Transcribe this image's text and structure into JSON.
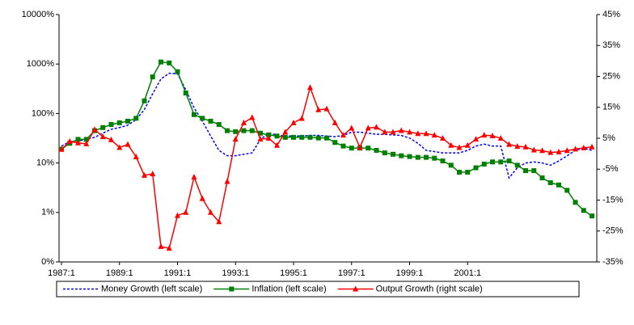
{
  "chart_data": {
    "type": "line",
    "categories": [
      "1987:1",
      null,
      null,
      null,
      null,
      null,
      null,
      "1989:1",
      null,
      null,
      null,
      null,
      null,
      null,
      "1991:1",
      null,
      null,
      null,
      null,
      null,
      null,
      "1993:1",
      null,
      null,
      null,
      null,
      null,
      null,
      "1995:1",
      null,
      null,
      null,
      null,
      null,
      null,
      "1997:1",
      null,
      null,
      null,
      null,
      null,
      null,
      "1999:1",
      null,
      null,
      null,
      null,
      null,
      null,
      "2001:1",
      null,
      null,
      null,
      null,
      null,
      null,
      null,
      null,
      null,
      null,
      null,
      null,
      null,
      null,
      null
    ],
    "log_scale_y": true,
    "ylim": [
      0.1,
      10000
    ],
    "yticks": [
      {
        "value": 0.1,
        "label": "0%"
      },
      {
        "value": 1,
        "label": "1%"
      },
      {
        "value": 10,
        "label": "10%"
      },
      {
        "value": 100,
        "label": "100%"
      },
      {
        "value": 1000,
        "label": "1000%"
      },
      {
        "value": 10000,
        "label": "10000%"
      }
    ],
    "y2lim": [
      -35,
      45
    ],
    "y2ticks": [
      {
        "value": -35,
        "label": "-35%"
      },
      {
        "value": -25,
        "label": "-25%"
      },
      {
        "value": -15,
        "label": "-15%"
      },
      {
        "value": -5,
        "label": "-5%"
      },
      {
        "value": 5,
        "label": "5%"
      },
      {
        "value": 15,
        "label": "15%"
      },
      {
        "value": 25,
        "label": "25%"
      },
      {
        "value": 35,
        "label": "35%"
      },
      {
        "value": 45,
        "label": "45%"
      }
    ],
    "legend": "bottom",
    "series": [
      {
        "name": "Money Growth (left scale)",
        "color": "#0000ff",
        "style": "dashed",
        "values": [
          22,
          27,
          28,
          30,
          33,
          40,
          48,
          52,
          58,
          75,
          120,
          250,
          500,
          650,
          640,
          300,
          130,
          70,
          35,
          18,
          14,
          14,
          15,
          16,
          30,
          40,
          37,
          35,
          35,
          35,
          36,
          36,
          35,
          34,
          36,
          42,
          42,
          40,
          38,
          38,
          37,
          36,
          32,
          25,
          18,
          17,
          16,
          16,
          16,
          18,
          22,
          24,
          22,
          22,
          5,
          8,
          10,
          10.5,
          10,
          9,
          11,
          14,
          18,
          20,
          18
        ]
      },
      {
        "name": "Inflation (left scale)",
        "color": "#008000",
        "marker": "square",
        "values": [
          19,
          25,
          30,
          30,
          45,
          52,
          60,
          65,
          70,
          80,
          180,
          550,
          1100,
          1050,
          700,
          260,
          95,
          80,
          70,
          60,
          45,
          43,
          45,
          45,
          40,
          37,
          35,
          33,
          33,
          33,
          33,
          32,
          32,
          26,
          22,
          20,
          20,
          20,
          18,
          16,
          15,
          14,
          13.5,
          13,
          13,
          12.5,
          11,
          9,
          6.5,
          6.5,
          8,
          9.5,
          10.5,
          10.5,
          11,
          9,
          7,
          7,
          5,
          4,
          3.6,
          2.8,
          1.6,
          1.1,
          0.85
        ]
      },
      {
        "name": "Output Growth (right scale)",
        "color": "#ff0000",
        "marker": "triangle",
        "axis": "y2",
        "values": [
          1.4,
          4,
          3.5,
          3.2,
          7.8,
          5.5,
          4.5,
          2,
          3,
          -1,
          -7,
          -6.5,
          -30,
          -30.6,
          -20,
          -19,
          -7.5,
          -14.5,
          -19,
          -22,
          -9,
          4.7,
          10,
          11.7,
          4.7,
          5,
          2.7,
          7,
          10,
          11.4,
          21.4,
          14.2,
          14.5,
          10,
          6,
          8.3,
          2,
          8.3,
          8.6,
          7,
          7,
          7.5,
          7,
          6.5,
          6.5,
          6,
          5,
          2.7,
          2,
          2.7,
          4.7,
          6,
          5.8,
          5,
          3,
          2.4,
          2.2,
          1.2,
          1,
          0.4,
          0.6,
          1,
          1.5,
          1.9,
          2.2
        ]
      }
    ]
  }
}
